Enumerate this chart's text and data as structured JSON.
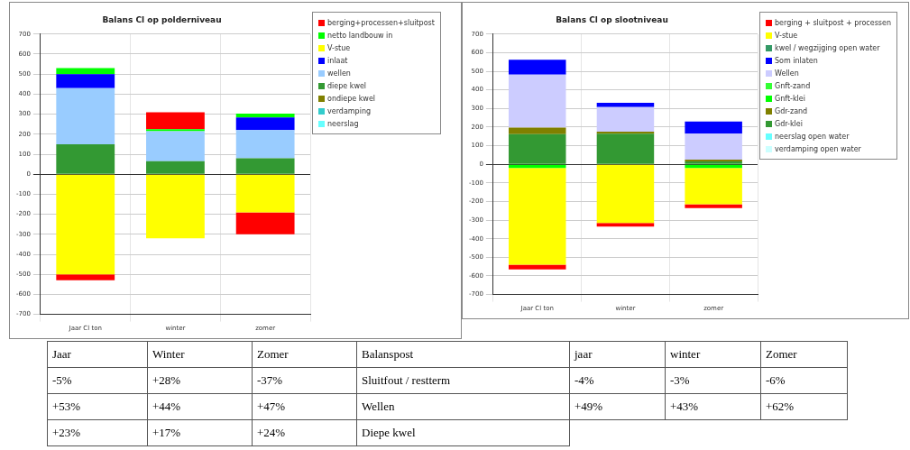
{
  "chart_data": [
    {
      "type": "bar",
      "title": "Balans Cl op polderniveau",
      "categories": [
        "Jaar Cl ton",
        "winter",
        "zomer"
      ],
      "stacked": true,
      "ylim": [
        -700,
        700
      ],
      "yticks": [
        -700,
        -600,
        -500,
        -400,
        -300,
        -200,
        -100,
        0,
        100,
        200,
        300,
        400,
        500,
        600,
        700
      ],
      "grid": true,
      "legend": "right",
      "series": [
        {
          "name": "neerslag",
          "color": "#66ffff",
          "values": [
            null,
            null,
            null
          ]
        },
        {
          "name": "verdamping",
          "color": "#33cccc",
          "values": [
            null,
            null,
            null
          ]
        },
        {
          "name": "ondiepe kwel",
          "color": "#808000",
          "values": [
            null,
            null,
            null
          ]
        },
        {
          "name": "diepe kwel",
          "color": "#339933",
          "values": [
            150,
            65,
            80
          ]
        },
        {
          "name": "wellen",
          "color": "#99ccff",
          "values": [
            280,
            150,
            140
          ]
        },
        {
          "name": "inlaat",
          "color": "#0000ff",
          "values": [
            70,
            null,
            63
          ]
        },
        {
          "name": "V-stue",
          "color": "#ffff00",
          "values": [
            -500,
            -320,
            -190
          ]
        },
        {
          "name": "netto landbouw in",
          "color": "#00ff00",
          "values": [
            30,
            10,
            20
          ]
        },
        {
          "name": "berging+processen+sluitpost",
          "color": "#ff0000",
          "values": [
            -30,
            85,
            -110
          ]
        }
      ]
    },
    {
      "type": "bar",
      "title": "Balans Cl op slootniveau",
      "categories": [
        "Jaar Cl ton",
        "winter",
        "zomer"
      ],
      "stacked": true,
      "ylim": [
        -700,
        700
      ],
      "yticks": [
        -700,
        -600,
        -500,
        -400,
        -300,
        -200,
        -100,
        0,
        100,
        200,
        300,
        400,
        500,
        600,
        700
      ],
      "grid": true,
      "legend": "right",
      "series": [
        {
          "name": "verdamping open water",
          "color": "#ccffff",
          "values": [
            null,
            null,
            null
          ]
        },
        {
          "name": "neerslag open water",
          "color": "#66ffff",
          "values": [
            null,
            null,
            null
          ]
        },
        {
          "name": "Gdr-klei",
          "color": "#339933",
          "values": [
            162,
            165,
            15
          ]
        },
        {
          "name": "Gdr-zand",
          "color": "#808000",
          "values": [
            35,
            10,
            10
          ]
        },
        {
          "name": "Gnft-klei",
          "color": "#00ff00",
          "values": [
            -20,
            null,
            -20
          ]
        },
        {
          "name": "Gnft-zand",
          "color": "#33ff33",
          "values": [
            null,
            null,
            null
          ]
        },
        {
          "name": "Wellen",
          "color": "#ccccff",
          "values": [
            285,
            133,
            140
          ]
        },
        {
          "name": "Som inlaten",
          "color": "#0000ff",
          "values": [
            80,
            23,
            65
          ]
        },
        {
          "name": "kwel / wegzijging open water",
          "color": "#339966",
          "values": [
            null,
            null,
            null
          ]
        },
        {
          "name": "V-stue",
          "color": "#ffff00",
          "values": [
            -520,
            -315,
            -195
          ]
        },
        {
          "name": "berging + sluitpost + processen",
          "color": "#ff0000",
          "values": [
            -25,
            -20,
            -20
          ]
        }
      ]
    },
    {
      "type": "other",
      "annotations": [
        "Jaar",
        "Winter",
        "Zomer",
        "Balanspost",
        "jaar",
        "winter",
        "Zomer",
        "-5%",
        "+28%",
        "-37%",
        "Sluitfout / restterm",
        "-4%",
        "-3%",
        "-6%",
        "+53%",
        "+44%",
        "+47%",
        "Wellen",
        "+49%",
        "+43%",
        "+62%",
        "+23%",
        "+17%",
        "+24%",
        "Diepe kwel"
      ]
    }
  ]
}
